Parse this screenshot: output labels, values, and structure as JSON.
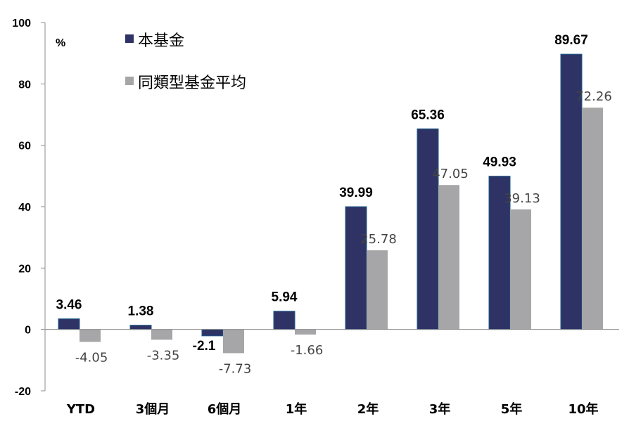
{
  "chart_data": {
    "type": "bar",
    "unit": "%",
    "categories": [
      "YTD",
      "3個月",
      "6個月",
      "1年",
      "2年",
      "3年",
      "5年",
      "10年"
    ],
    "series": [
      {
        "name": "本基金",
        "color": "#2e3265",
        "values": [
          3.46,
          1.38,
          -2.1,
          5.94,
          39.99,
          65.36,
          49.93,
          89.67
        ],
        "labels": [
          "3.46",
          "1.38",
          "-2.1",
          "5.94",
          "39.99",
          "65.36",
          "49.93",
          "89.67"
        ]
      },
      {
        "name": "同類型基金平均",
        "color": "#a6a6a8",
        "values": [
          -4.05,
          -3.35,
          -7.73,
          -1.66,
          25.78,
          47.05,
          39.13,
          72.26
        ],
        "labels": [
          "-4.05",
          "-3.35",
          "-7.73",
          "-1.66",
          "25.78",
          "47.05",
          "39.13",
          "72.26"
        ]
      }
    ],
    "ylim": [
      -20,
      100
    ],
    "yticks": [
      100,
      80,
      60,
      40,
      20,
      0,
      -20
    ],
    "grid": false,
    "legend_position": "top-left"
  }
}
